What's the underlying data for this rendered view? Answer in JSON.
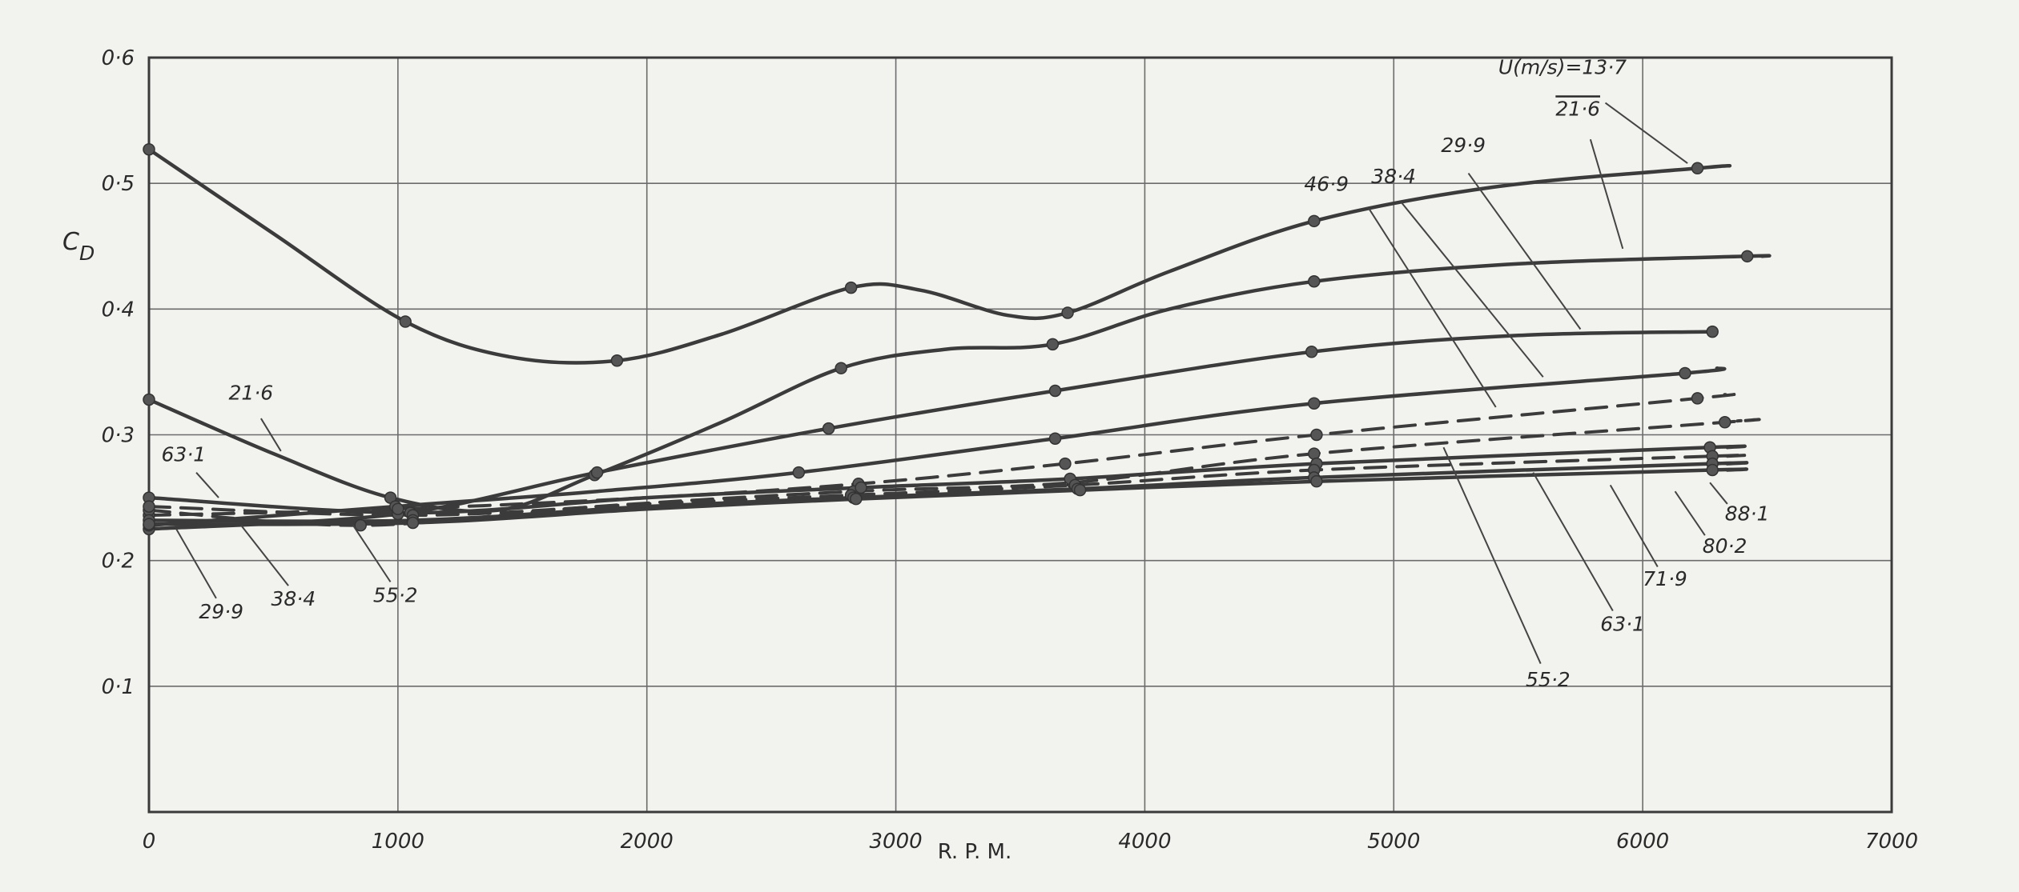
{
  "chart_data": {
    "type": "line",
    "title": "",
    "xlabel": "R. P. M.",
    "ylabel": "C",
    "ylabel_sub": "D",
    "xlim": [
      0,
      7000
    ],
    "ylim": [
      0,
      0.6
    ],
    "grid": true,
    "x_ticks": [
      {
        "value": 0,
        "label": "0"
      },
      {
        "value": 1000,
        "label": "1000"
      },
      {
        "value": 2000,
        "label": "2000"
      },
      {
        "value": 3000,
        "label": "3000"
      },
      {
        "value": 4000,
        "label": "4000"
      },
      {
        "value": 5000,
        "label": "5000"
      },
      {
        "value": 6000,
        "label": "6000"
      },
      {
        "value": 7000,
        "label": "7000"
      }
    ],
    "y_ticks": [
      {
        "value": 0.1,
        "label": "0·1"
      },
      {
        "value": 0.2,
        "label": "0·2"
      },
      {
        "value": 0.3,
        "label": "0·3"
      },
      {
        "value": 0.4,
        "label": "0·4"
      },
      {
        "value": 0.5,
        "label": "0·5"
      },
      {
        "value": 0.6,
        "label": "0·6"
      }
    ],
    "series": [
      {
        "name": "13·7",
        "style": "solid",
        "points": [
          [
            0,
            0.527
          ],
          [
            1030,
            0.39
          ],
          [
            1880,
            0.359
          ],
          [
            2820,
            0.417
          ],
          [
            3690,
            0.397
          ],
          [
            4680,
            0.47
          ],
          [
            6220,
            0.512
          ]
        ],
        "curve": [
          [
            0,
            0.527
          ],
          [
            500,
            0.46
          ],
          [
            1030,
            0.39
          ],
          [
            1450,
            0.362
          ],
          [
            1880,
            0.359
          ],
          [
            2300,
            0.38
          ],
          [
            2820,
            0.417
          ],
          [
            3100,
            0.415
          ],
          [
            3450,
            0.395
          ],
          [
            3690,
            0.397
          ],
          [
            4100,
            0.43
          ],
          [
            4680,
            0.47
          ],
          [
            5400,
            0.497
          ],
          [
            6220,
            0.512
          ],
          [
            6350,
            0.514
          ]
        ]
      },
      {
        "name": "21·6",
        "style": "solid",
        "points": [
          [
            0,
            0.328
          ],
          [
            970,
            0.25
          ],
          [
            1790,
            0.268
          ],
          [
            2780,
            0.353
          ],
          [
            3630,
            0.372
          ],
          [
            4680,
            0.422
          ],
          [
            6420,
            0.442
          ]
        ],
        "curve": [
          [
            0,
            0.328
          ],
          [
            500,
            0.285
          ],
          [
            970,
            0.25
          ],
          [
            1400,
            0.24
          ],
          [
            1790,
            0.268
          ],
          [
            2300,
            0.31
          ],
          [
            2780,
            0.353
          ],
          [
            3200,
            0.368
          ],
          [
            3630,
            0.372
          ],
          [
            4100,
            0.4
          ],
          [
            4680,
            0.422
          ],
          [
            5500,
            0.436
          ],
          [
            6420,
            0.442
          ],
          [
            6480,
            0.442
          ]
        ]
      },
      {
        "name": "29·9",
        "style": "solid",
        "points": [
          [
            0,
            0.225
          ],
          [
            1000,
            0.237
          ],
          [
            1800,
            0.27
          ],
          [
            2730,
            0.305
          ],
          [
            3640,
            0.335
          ],
          [
            4670,
            0.366
          ],
          [
            6280,
            0.382
          ]
        ],
        "curve": [
          [
            0,
            0.225
          ],
          [
            1000,
            0.237
          ],
          [
            1800,
            0.27
          ],
          [
            2730,
            0.305
          ],
          [
            3640,
            0.335
          ],
          [
            4670,
            0.366
          ],
          [
            5500,
            0.379
          ],
          [
            6280,
            0.382
          ]
        ]
      },
      {
        "name": "38·4",
        "style": "solid",
        "points": [
          [
            0,
            0.228
          ],
          [
            990,
            0.243
          ],
          [
            2610,
            0.27
          ],
          [
            3640,
            0.297
          ],
          [
            4680,
            0.325
          ],
          [
            6170,
            0.349
          ]
        ],
        "curve": [
          [
            0,
            0.228
          ],
          [
            990,
            0.243
          ],
          [
            1800,
            0.255
          ],
          [
            2610,
            0.27
          ],
          [
            3640,
            0.297
          ],
          [
            4680,
            0.325
          ],
          [
            6170,
            0.349
          ],
          [
            6300,
            0.353
          ]
        ]
      },
      {
        "name": "46·9",
        "style": "dashed",
        "points": [
          [
            0,
            0.236
          ],
          [
            1000,
            0.241
          ],
          [
            2850,
            0.261
          ],
          [
            3680,
            0.277
          ],
          [
            4690,
            0.3
          ],
          [
            6220,
            0.329
          ]
        ],
        "curve": [
          [
            0,
            0.236
          ],
          [
            1000,
            0.241
          ],
          [
            2000,
            0.25
          ],
          [
            2850,
            0.261
          ],
          [
            3680,
            0.277
          ],
          [
            4690,
            0.3
          ],
          [
            6220,
            0.329
          ],
          [
            6330,
            0.332
          ]
        ]
      },
      {
        "name": "55·2",
        "style": "dashed",
        "points": [
          [
            0,
            0.24
          ],
          [
            850,
            0.228
          ],
          [
            2830,
            0.255
          ],
          [
            3710,
            0.262
          ],
          [
            4680,
            0.285
          ],
          [
            6330,
            0.31
          ]
        ],
        "curve": [
          [
            0,
            0.24
          ],
          [
            850,
            0.228
          ],
          [
            1800,
            0.243
          ],
          [
            2830,
            0.255
          ],
          [
            3710,
            0.262
          ],
          [
            4680,
            0.285
          ],
          [
            6330,
            0.31
          ],
          [
            6380,
            0.311
          ]
        ]
      },
      {
        "name": "63·1",
        "style": "solid",
        "points": [
          [
            0,
            0.25
          ],
          [
            1050,
            0.238
          ],
          [
            2860,
            0.258
          ],
          [
            3700,
            0.265
          ],
          [
            4690,
            0.277
          ],
          [
            6270,
            0.29
          ]
        ],
        "curve": [
          [
            0,
            0.25
          ],
          [
            1050,
            0.238
          ],
          [
            2000,
            0.25
          ],
          [
            2860,
            0.258
          ],
          [
            3700,
            0.265
          ],
          [
            4690,
            0.277
          ],
          [
            6270,
            0.29
          ],
          [
            6340,
            0.29
          ]
        ]
      },
      {
        "name": "71·9",
        "style": "dashed",
        "points": [
          [
            0,
            0.243
          ],
          [
            1060,
            0.236
          ],
          [
            2820,
            0.252
          ],
          [
            3720,
            0.26
          ],
          [
            4680,
            0.272
          ],
          [
            6280,
            0.283
          ]
        ],
        "curve": [
          [
            0,
            0.243
          ],
          [
            1060,
            0.236
          ],
          [
            2000,
            0.245
          ],
          [
            2820,
            0.252
          ],
          [
            3720,
            0.26
          ],
          [
            4680,
            0.272
          ],
          [
            6280,
            0.283
          ],
          [
            6340,
            0.283
          ]
        ]
      },
      {
        "name": "80·2",
        "style": "solid",
        "points": [
          [
            0,
            0.232
          ],
          [
            1060,
            0.232
          ],
          [
            2830,
            0.25
          ],
          [
            3730,
            0.257
          ],
          [
            4680,
            0.266
          ],
          [
            6280,
            0.277
          ]
        ],
        "curve": [
          [
            0,
            0.232
          ],
          [
            1060,
            0.232
          ],
          [
            2000,
            0.243
          ],
          [
            2830,
            0.25
          ],
          [
            3730,
            0.257
          ],
          [
            4680,
            0.266
          ],
          [
            6280,
            0.277
          ],
          [
            6340,
            0.277
          ]
        ]
      },
      {
        "name": "88·1",
        "style": "solid",
        "points": [
          [
            0,
            0.229
          ],
          [
            1060,
            0.23
          ],
          [
            2840,
            0.249
          ],
          [
            3740,
            0.256
          ],
          [
            4690,
            0.263
          ],
          [
            6280,
            0.272
          ]
        ],
        "curve": [
          [
            0,
            0.229
          ],
          [
            1060,
            0.23
          ],
          [
            2000,
            0.241
          ],
          [
            2840,
            0.249
          ],
          [
            3740,
            0.256
          ],
          [
            4690,
            0.263
          ],
          [
            6280,
            0.272
          ],
          [
            6340,
            0.272
          ]
        ]
      }
    ],
    "annotations": [
      {
        "text": "U(m/s)=13·7",
        "x": 5420,
        "y": 0.587,
        "anchor": "start",
        "leader": [
          [
            5850,
            0.564
          ],
          [
            6180,
            0.516
          ]
        ]
      },
      {
        "text": "21·6",
        "x": 5650,
        "y": 0.554,
        "anchor": "start",
        "overline": true,
        "leader": [
          [
            5790,
            0.535
          ],
          [
            5920,
            0.448
          ]
        ]
      },
      {
        "text": "29·9",
        "x": 5190,
        "y": 0.525,
        "anchor": "start",
        "leader": [
          [
            5300,
            0.508
          ],
          [
            5750,
            0.384
          ]
        ]
      },
      {
        "text": "38·4",
        "x": 4910,
        "y": 0.5,
        "anchor": "start",
        "leader": [
          [
            5030,
            0.485
          ],
          [
            5600,
            0.346
          ]
        ]
      },
      {
        "text": "46·9",
        "x": 4640,
        "y": 0.494,
        "anchor": "start",
        "leader": [
          [
            4900,
            0.48
          ],
          [
            5410,
            0.322
          ]
        ]
      },
      {
        "text": "21·6",
        "x": 320,
        "y": 0.328,
        "anchor": "start",
        "leader": [
          [
            450,
            0.313
          ],
          [
            530,
            0.287
          ]
        ]
      },
      {
        "text": "63·1",
        "x": 50,
        "y": 0.279,
        "anchor": "start",
        "leader": [
          [
            190,
            0.27
          ],
          [
            280,
            0.25
          ]
        ]
      },
      {
        "text": "29·9",
        "x": 290,
        "y": 0.154,
        "anchor": "middle",
        "leader": [
          [
            270,
            0.17
          ],
          [
            110,
            0.225
          ]
        ]
      },
      {
        "text": "38·4",
        "x": 580,
        "y": 0.164,
        "anchor": "middle",
        "leader": [
          [
            560,
            0.18
          ],
          [
            370,
            0.228
          ]
        ]
      },
      {
        "text": "55·2",
        "x": 990,
        "y": 0.167,
        "anchor": "middle",
        "leader": [
          [
            970,
            0.183
          ],
          [
            820,
            0.228
          ]
        ]
      },
      {
        "text": "88·1",
        "x": 6330,
        "y": 0.232,
        "anchor": "start",
        "leader": [
          [
            6340,
            0.245
          ],
          [
            6270,
            0.262
          ]
        ]
      },
      {
        "text": "80·2",
        "x": 6240,
        "y": 0.206,
        "anchor": "start",
        "leader": [
          [
            6250,
            0.22
          ],
          [
            6130,
            0.255
          ]
        ]
      },
      {
        "text": "71·9",
        "x": 6000,
        "y": 0.18,
        "anchor": "start",
        "leader": [
          [
            6060,
            0.195
          ],
          [
            5870,
            0.26
          ]
        ]
      },
      {
        "text": "63·1",
        "x": 5830,
        "y": 0.144,
        "anchor": "start",
        "leader": [
          [
            5880,
            0.16
          ],
          [
            5560,
            0.27
          ]
        ]
      },
      {
        "text": "55·2",
        "x": 5530,
        "y": 0.1,
        "anchor": "start",
        "leader": [
          [
            5590,
            0.118
          ],
          [
            5200,
            0.29
          ]
        ]
      }
    ]
  }
}
